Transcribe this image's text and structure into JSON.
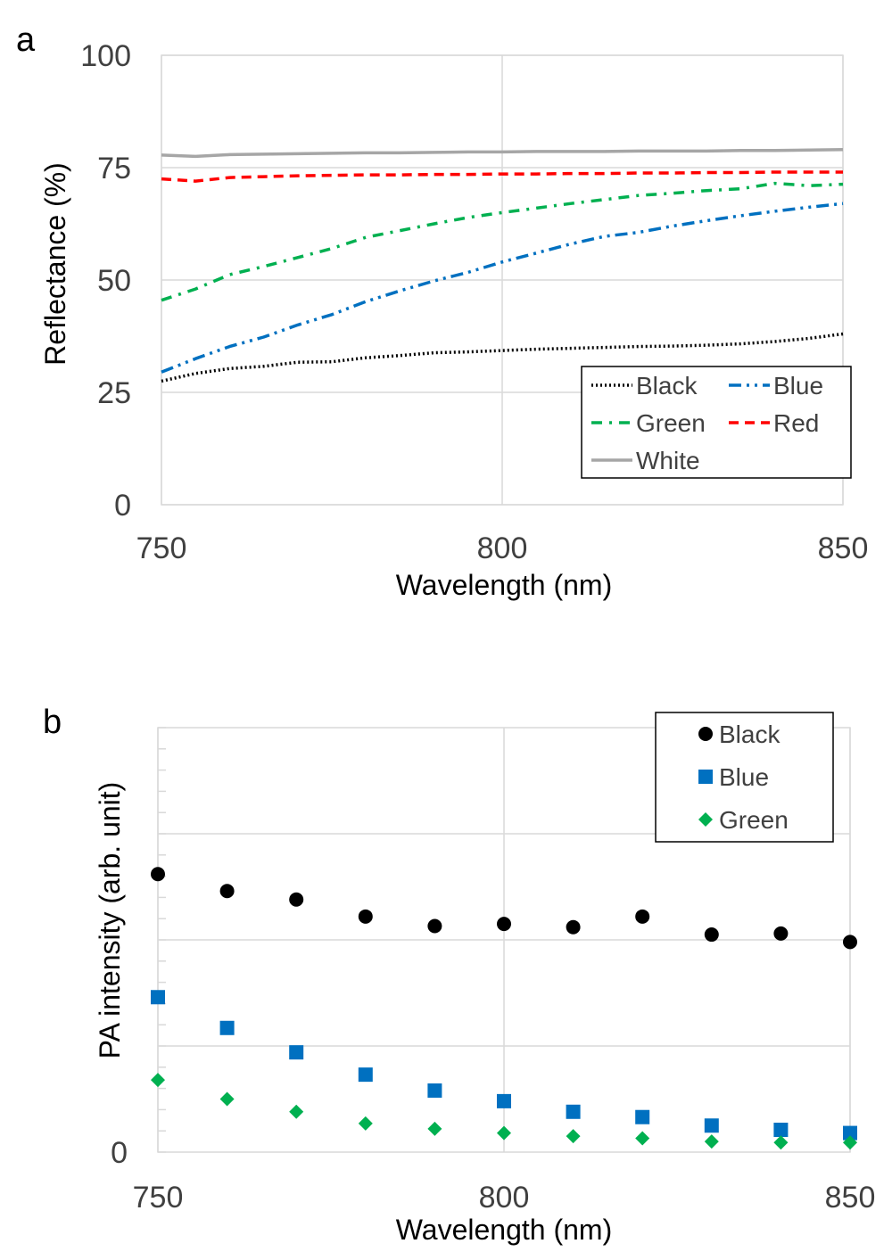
{
  "chart_data": [
    {
      "type": "line",
      "panel_label": "a",
      "xlabel": "Wavelength (nm)",
      "ylabel": "Reflectance (%)",
      "xlim": [
        750,
        850
      ],
      "ylim": [
        0,
        100
      ],
      "x_ticks": [
        "750",
        "800",
        "850"
      ],
      "y_ticks": [
        "0",
        "25",
        "50",
        "75",
        "100"
      ],
      "grid": true,
      "legend_position": "bottom-right",
      "x": [
        750,
        755,
        760,
        765,
        770,
        775,
        780,
        785,
        790,
        795,
        800,
        805,
        810,
        815,
        820,
        825,
        830,
        835,
        840,
        845,
        850
      ],
      "series": [
        {
          "name": "Black",
          "style": "dotted",
          "color": "#000000",
          "values": [
            27.5,
            29.2,
            30.3,
            30.8,
            31.7,
            31.8,
            32.7,
            33.2,
            33.8,
            34.0,
            34.3,
            34.6,
            34.8,
            35.0,
            35.2,
            35.3,
            35.5,
            35.8,
            36.3,
            37.0,
            38.0
          ]
        },
        {
          "name": "Blue",
          "style": "dash-dot-dot",
          "color": "#0070C0",
          "values": [
            29.5,
            32.5,
            35.2,
            37.3,
            40.0,
            42.3,
            45.2,
            47.6,
            49.8,
            51.7,
            54.0,
            56.0,
            58.0,
            59.7,
            60.6,
            62.0,
            63.2,
            64.3,
            65.3,
            66.2,
            67.0
          ]
        },
        {
          "name": "Green",
          "style": "dash-dot",
          "color": "#00B050",
          "values": [
            45.5,
            48.0,
            51.2,
            53.0,
            55.0,
            57.0,
            59.5,
            61.0,
            62.5,
            63.9,
            65.0,
            66.0,
            67.0,
            67.9,
            68.8,
            69.3,
            69.9,
            70.3,
            71.5,
            71.0,
            71.3
          ]
        },
        {
          "name": "Red",
          "style": "dashed",
          "color": "#FF0000",
          "values": [
            72.5,
            72.0,
            72.8,
            73.0,
            73.2,
            73.3,
            73.4,
            73.4,
            73.5,
            73.5,
            73.6,
            73.6,
            73.7,
            73.7,
            73.8,
            73.8,
            73.9,
            73.9,
            74.0,
            74.0,
            74.0
          ]
        },
        {
          "name": "White",
          "style": "solid",
          "color": "#A6A6A6",
          "values": [
            77.8,
            77.5,
            77.9,
            78.0,
            78.1,
            78.2,
            78.3,
            78.3,
            78.4,
            78.5,
            78.5,
            78.6,
            78.6,
            78.6,
            78.7,
            78.7,
            78.7,
            78.8,
            78.8,
            78.9,
            79.0
          ]
        }
      ]
    },
    {
      "type": "scatter",
      "panel_label": "b",
      "xlabel": "Wavelength (nm)",
      "ylabel": "PA intensity (arb. unit)",
      "xlim": [
        750,
        850
      ],
      "ylim": [
        0,
        4
      ],
      "x_ticks": [
        "750",
        "800",
        "850"
      ],
      "y_ticks": [
        "0"
      ],
      "grid": true,
      "legend_position": "top-right",
      "x": [
        750,
        760,
        770,
        780,
        790,
        800,
        810,
        820,
        830,
        840,
        850
      ],
      "series": [
        {
          "name": "Black",
          "marker": "circle",
          "color": "#000000",
          "values": [
            2.62,
            2.46,
            2.38,
            2.22,
            2.13,
            2.15,
            2.12,
            2.22,
            2.05,
            2.06,
            1.98
          ]
        },
        {
          "name": "Blue",
          "marker": "square",
          "color": "#0070C0",
          "values": [
            1.46,
            1.17,
            0.94,
            0.73,
            0.58,
            0.48,
            0.38,
            0.33,
            0.25,
            0.21,
            0.18
          ]
        },
        {
          "name": "Green",
          "marker": "diamond",
          "color": "#00B050",
          "values": [
            0.68,
            0.5,
            0.38,
            0.27,
            0.22,
            0.18,
            0.15,
            0.13,
            0.1,
            0.09,
            0.09
          ]
        }
      ]
    }
  ]
}
